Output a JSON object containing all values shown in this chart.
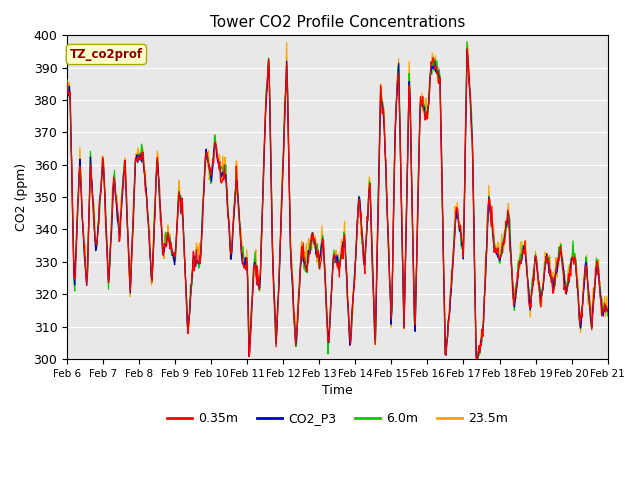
{
  "title": "Tower CO2 Profile Concentrations",
  "xlabel": "Time",
  "ylabel": "CO2 (ppm)",
  "ylim": [
    300,
    400
  ],
  "yticks": [
    300,
    310,
    320,
    330,
    340,
    350,
    360,
    370,
    380,
    390,
    400
  ],
  "xtick_labels": [
    "Feb 6",
    "Feb 7",
    "Feb 8",
    "Feb 9",
    "Feb 10",
    "Feb 11",
    "Feb 12",
    "Feb 13",
    "Feb 14",
    "Feb 15",
    "Feb 16",
    "Feb 17",
    "Feb 18",
    "Feb 19",
    "Feb 20",
    "Feb 21"
  ],
  "annotation_text": "TZ_co2prof",
  "annotation_color": "#8B0000",
  "annotation_bg": "#FFFFCC",
  "bg_color": "#E8E8E8",
  "legend_entries": [
    "0.35m",
    "CO2_P3",
    "6.0m",
    "23.5m"
  ],
  "series_colors": [
    "#FF0000",
    "#0000CC",
    "#00CC00",
    "#FFA500"
  ],
  "linewidth": 0.9,
  "n_days": 15,
  "pts_per_day": 48
}
